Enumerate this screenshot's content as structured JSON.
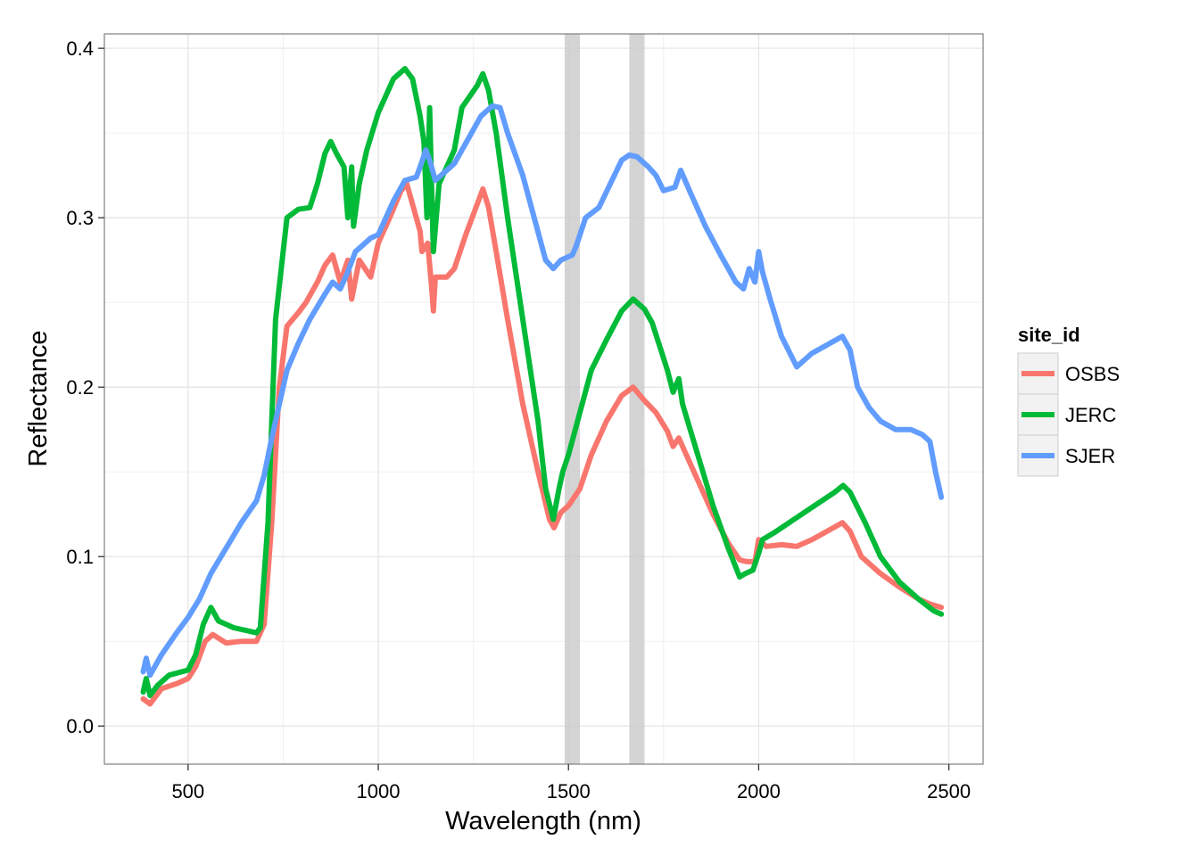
{
  "chart_data": {
    "type": "line",
    "title": "",
    "xlabel": "Wavelength (nm)",
    "ylabel": "Reflectance",
    "xlim": [
      280,
      2590
    ],
    "ylim": [
      -0.0225,
      0.4085
    ],
    "x_ticks": [
      500,
      1000,
      1500,
      2000,
      2500
    ],
    "x_tick_labels": [
      "500",
      "1000",
      "1500",
      "2000",
      "2500"
    ],
    "y_ticks": [
      0.0,
      0.1,
      0.2,
      0.3,
      0.4
    ],
    "y_tick_labels": [
      "0.0",
      "0.1",
      "0.2",
      "0.3",
      "0.4"
    ],
    "grid": true,
    "legend_position": "right",
    "legend_title": "site_id",
    "shaded_bands": [
      {
        "from": 1490,
        "to": 1530,
        "color": "#cccccc"
      },
      {
        "from": 1660,
        "to": 1700,
        "color": "#cccccc"
      }
    ],
    "series": [
      {
        "name": "OSBS",
        "color": "#f8766d",
        "points": [
          [
            382,
            0.016
          ],
          [
            400,
            0.013
          ],
          [
            430,
            0.022
          ],
          [
            470,
            0.025
          ],
          [
            500,
            0.028
          ],
          [
            520,
            0.035
          ],
          [
            545,
            0.05
          ],
          [
            565,
            0.054
          ],
          [
            600,
            0.049
          ],
          [
            640,
            0.05
          ],
          [
            680,
            0.05
          ],
          [
            700,
            0.06
          ],
          [
            720,
            0.12
          ],
          [
            740,
            0.2
          ],
          [
            760,
            0.236
          ],
          [
            790,
            0.244
          ],
          [
            810,
            0.25
          ],
          [
            840,
            0.262
          ],
          [
            860,
            0.272
          ],
          [
            880,
            0.278
          ],
          [
            900,
            0.262
          ],
          [
            920,
            0.275
          ],
          [
            930,
            0.252
          ],
          [
            950,
            0.275
          ],
          [
            980,
            0.265
          ],
          [
            1000,
            0.285
          ],
          [
            1030,
            0.3
          ],
          [
            1060,
            0.316
          ],
          [
            1075,
            0.32
          ],
          [
            1090,
            0.308
          ],
          [
            1110,
            0.292
          ],
          [
            1115,
            0.28
          ],
          [
            1130,
            0.285
          ],
          [
            1140,
            0.26
          ],
          [
            1145,
            0.245
          ],
          [
            1150,
            0.265
          ],
          [
            1180,
            0.265
          ],
          [
            1200,
            0.27
          ],
          [
            1230,
            0.29
          ],
          [
            1260,
            0.308
          ],
          [
            1275,
            0.317
          ],
          [
            1290,
            0.306
          ],
          [
            1310,
            0.28
          ],
          [
            1340,
            0.24
          ],
          [
            1380,
            0.19
          ],
          [
            1420,
            0.15
          ],
          [
            1450,
            0.122
          ],
          [
            1462,
            0.117
          ],
          [
            1480,
            0.126
          ],
          [
            1500,
            0.13
          ],
          [
            1530,
            0.14
          ],
          [
            1560,
            0.16
          ],
          [
            1600,
            0.18
          ],
          [
            1640,
            0.195
          ],
          [
            1670,
            0.2
          ],
          [
            1700,
            0.192
          ],
          [
            1730,
            0.185
          ],
          [
            1760,
            0.174
          ],
          [
            1775,
            0.165
          ],
          [
            1790,
            0.17
          ],
          [
            1800,
            0.165
          ],
          [
            1840,
            0.145
          ],
          [
            1880,
            0.125
          ],
          [
            1920,
            0.108
          ],
          [
            1950,
            0.098
          ],
          [
            1970,
            0.097
          ],
          [
            1990,
            0.097
          ],
          [
            2000,
            0.11
          ],
          [
            2020,
            0.106
          ],
          [
            2060,
            0.107
          ],
          [
            2100,
            0.106
          ],
          [
            2140,
            0.11
          ],
          [
            2180,
            0.115
          ],
          [
            2220,
            0.12
          ],
          [
            2240,
            0.115
          ],
          [
            2270,
            0.1
          ],
          [
            2320,
            0.09
          ],
          [
            2370,
            0.082
          ],
          [
            2420,
            0.075
          ],
          [
            2450,
            0.072
          ],
          [
            2480,
            0.07
          ]
        ]
      },
      {
        "name": "JERC",
        "color": "#00ba38",
        "points": [
          [
            382,
            0.02
          ],
          [
            390,
            0.028
          ],
          [
            400,
            0.018
          ],
          [
            420,
            0.024
          ],
          [
            450,
            0.03
          ],
          [
            500,
            0.033
          ],
          [
            520,
            0.042
          ],
          [
            540,
            0.06
          ],
          [
            560,
            0.07
          ],
          [
            580,
            0.062
          ],
          [
            620,
            0.058
          ],
          [
            680,
            0.055
          ],
          [
            690,
            0.058
          ],
          [
            710,
            0.12
          ],
          [
            730,
            0.24
          ],
          [
            750,
            0.28
          ],
          [
            760,
            0.3
          ],
          [
            790,
            0.305
          ],
          [
            820,
            0.306
          ],
          [
            840,
            0.32
          ],
          [
            860,
            0.338
          ],
          [
            875,
            0.345
          ],
          [
            890,
            0.338
          ],
          [
            910,
            0.33
          ],
          [
            920,
            0.3
          ],
          [
            930,
            0.33
          ],
          [
            935,
            0.295
          ],
          [
            950,
            0.32
          ],
          [
            970,
            0.34
          ],
          [
            1000,
            0.362
          ],
          [
            1040,
            0.382
          ],
          [
            1070,
            0.388
          ],
          [
            1090,
            0.382
          ],
          [
            1110,
            0.36
          ],
          [
            1120,
            0.345
          ],
          [
            1128,
            0.3
          ],
          [
            1135,
            0.365
          ],
          [
            1140,
            0.32
          ],
          [
            1145,
            0.28
          ],
          [
            1160,
            0.32
          ],
          [
            1200,
            0.34
          ],
          [
            1220,
            0.365
          ],
          [
            1260,
            0.378
          ],
          [
            1275,
            0.385
          ],
          [
            1290,
            0.375
          ],
          [
            1310,
            0.35
          ],
          [
            1340,
            0.3
          ],
          [
            1380,
            0.24
          ],
          [
            1420,
            0.18
          ],
          [
            1440,
            0.14
          ],
          [
            1460,
            0.122
          ],
          [
            1475,
            0.14
          ],
          [
            1485,
            0.15
          ],
          [
            1500,
            0.16
          ],
          [
            1530,
            0.185
          ],
          [
            1560,
            0.21
          ],
          [
            1600,
            0.228
          ],
          [
            1640,
            0.245
          ],
          [
            1670,
            0.252
          ],
          [
            1700,
            0.246
          ],
          [
            1720,
            0.238
          ],
          [
            1740,
            0.224
          ],
          [
            1760,
            0.21
          ],
          [
            1775,
            0.197
          ],
          [
            1790,
            0.205
          ],
          [
            1800,
            0.19
          ],
          [
            1840,
            0.16
          ],
          [
            1880,
            0.13
          ],
          [
            1920,
            0.105
          ],
          [
            1950,
            0.088
          ],
          [
            1965,
            0.09
          ],
          [
            1985,
            0.092
          ],
          [
            2000,
            0.102
          ],
          [
            2010,
            0.11
          ],
          [
            2040,
            0.114
          ],
          [
            2080,
            0.12
          ],
          [
            2120,
            0.126
          ],
          [
            2160,
            0.132
          ],
          [
            2200,
            0.138
          ],
          [
            2222,
            0.142
          ],
          [
            2240,
            0.138
          ],
          [
            2280,
            0.12
          ],
          [
            2320,
            0.1
          ],
          [
            2370,
            0.085
          ],
          [
            2420,
            0.075
          ],
          [
            2460,
            0.068
          ],
          [
            2480,
            0.066
          ]
        ]
      },
      {
        "name": "SJER",
        "color": "#619cff",
        "points": [
          [
            382,
            0.032
          ],
          [
            390,
            0.04
          ],
          [
            400,
            0.03
          ],
          [
            430,
            0.042
          ],
          [
            470,
            0.055
          ],
          [
            500,
            0.064
          ],
          [
            530,
            0.075
          ],
          [
            560,
            0.09
          ],
          [
            600,
            0.105
          ],
          [
            640,
            0.12
          ],
          [
            680,
            0.133
          ],
          [
            700,
            0.148
          ],
          [
            720,
            0.17
          ],
          [
            740,
            0.19
          ],
          [
            760,
            0.21
          ],
          [
            790,
            0.226
          ],
          [
            820,
            0.24
          ],
          [
            860,
            0.255
          ],
          [
            880,
            0.262
          ],
          [
            900,
            0.258
          ],
          [
            920,
            0.268
          ],
          [
            940,
            0.28
          ],
          [
            960,
            0.284
          ],
          [
            980,
            0.288
          ],
          [
            1000,
            0.29
          ],
          [
            1040,
            0.31
          ],
          [
            1070,
            0.322
          ],
          [
            1100,
            0.324
          ],
          [
            1110,
            0.33
          ],
          [
            1125,
            0.34
          ],
          [
            1135,
            0.334
          ],
          [
            1150,
            0.322
          ],
          [
            1180,
            0.328
          ],
          [
            1200,
            0.332
          ],
          [
            1240,
            0.348
          ],
          [
            1270,
            0.36
          ],
          [
            1300,
            0.366
          ],
          [
            1320,
            0.365
          ],
          [
            1340,
            0.35
          ],
          [
            1380,
            0.325
          ],
          [
            1410,
            0.3
          ],
          [
            1440,
            0.275
          ],
          [
            1460,
            0.27
          ],
          [
            1480,
            0.275
          ],
          [
            1510,
            0.278
          ],
          [
            1520,
            0.283
          ],
          [
            1545,
            0.3
          ],
          [
            1580,
            0.306
          ],
          [
            1610,
            0.32
          ],
          [
            1640,
            0.334
          ],
          [
            1660,
            0.337
          ],
          [
            1680,
            0.336
          ],
          [
            1710,
            0.33
          ],
          [
            1730,
            0.325
          ],
          [
            1750,
            0.316
          ],
          [
            1780,
            0.318
          ],
          [
            1795,
            0.328
          ],
          [
            1820,
            0.315
          ],
          [
            1860,
            0.295
          ],
          [
            1900,
            0.278
          ],
          [
            1940,
            0.262
          ],
          [
            1960,
            0.258
          ],
          [
            1975,
            0.27
          ],
          [
            1990,
            0.262
          ],
          [
            2000,
            0.28
          ],
          [
            2010,
            0.268
          ],
          [
            2030,
            0.252
          ],
          [
            2060,
            0.23
          ],
          [
            2100,
            0.212
          ],
          [
            2140,
            0.22
          ],
          [
            2180,
            0.225
          ],
          [
            2220,
            0.23
          ],
          [
            2240,
            0.222
          ],
          [
            2260,
            0.2
          ],
          [
            2290,
            0.188
          ],
          [
            2320,
            0.18
          ],
          [
            2360,
            0.175
          ],
          [
            2400,
            0.175
          ],
          [
            2430,
            0.172
          ],
          [
            2450,
            0.168
          ],
          [
            2465,
            0.15
          ],
          [
            2480,
            0.135
          ]
        ]
      }
    ]
  }
}
